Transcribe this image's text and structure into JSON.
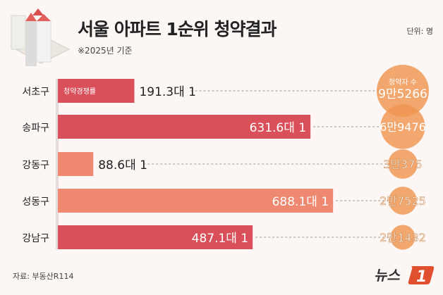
{
  "title": "서울 아파트 1순위 청약결과",
  "subtitle": "※2025년 기준",
  "unit": "단위: 명",
  "source": "자료: 부동산R114",
  "logo": "뉴스1",
  "chart_data": {
    "type": "bar",
    "orientation": "horizontal",
    "categories": [
      "서초구",
      "송파구",
      "강동구",
      "성동구",
      "강남구"
    ],
    "series": [
      {
        "name": "청약경쟁률",
        "values": [
          191.3,
          631.6,
          88.6,
          688.1,
          487.1
        ],
        "labels": [
          "191.3대 1",
          "631.6대 1",
          "88.6대 1",
          "688.1대 1",
          "487.1대 1"
        ]
      },
      {
        "name": "청약자 수",
        "values": [
          95266,
          69476,
          30375,
          27525,
          21432
        ],
        "labels": [
          "9만5266",
          "6만9476",
          "3만375",
          "2만7525",
          "2만1432"
        ]
      }
    ],
    "bar_colors": [
      "#d9505a",
      "#d9505a",
      "#ee8870",
      "#ee8870",
      "#d9505a"
    ],
    "bubble_color": "#ef9550",
    "grid": false
  }
}
